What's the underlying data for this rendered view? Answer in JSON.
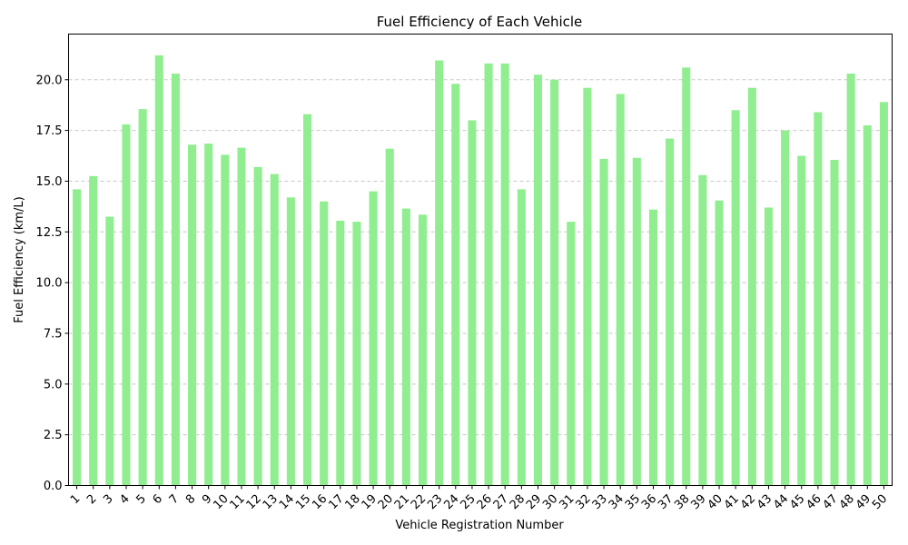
{
  "chart_data": {
    "type": "bar",
    "title": "Fuel Efficiency of Each Vehicle",
    "xlabel": "Vehicle Registration Number",
    "ylabel": "Fuel Efficiency (km/L)",
    "ylim": [
      0,
      22.25
    ],
    "yticks": [
      "0.0",
      "2.5",
      "5.0",
      "7.5",
      "10.0",
      "12.5",
      "15.0",
      "17.5",
      "20.0"
    ],
    "grid": "y-dashed",
    "bar_color": "#90ee90",
    "categories": [
      "1",
      "2",
      "3",
      "4",
      "5",
      "6",
      "7",
      "8",
      "9",
      "10",
      "11",
      "12",
      "13",
      "14",
      "15",
      "16",
      "17",
      "18",
      "19",
      "20",
      "21",
      "22",
      "23",
      "24",
      "25",
      "26",
      "27",
      "28",
      "29",
      "30",
      "31",
      "32",
      "33",
      "34",
      "35",
      "36",
      "37",
      "38",
      "39",
      "40",
      "41",
      "42",
      "43",
      "44",
      "45",
      "46",
      "47",
      "48",
      "49",
      "50"
    ],
    "values": [
      14.6,
      15.25,
      13.25,
      17.8,
      18.55,
      21.2,
      20.3,
      16.8,
      16.85,
      16.3,
      16.65,
      15.7,
      15.35,
      14.2,
      18.3,
      14.0,
      13.05,
      13.0,
      14.5,
      16.6,
      13.65,
      13.35,
      20.95,
      19.8,
      18.0,
      20.8,
      20.8,
      14.6,
      20.25,
      20.0,
      13.0,
      19.6,
      16.1,
      19.3,
      16.15,
      13.6,
      17.1,
      20.6,
      15.3,
      14.05,
      18.5,
      19.6,
      13.7,
      17.5,
      16.25,
      18.4,
      16.05,
      20.3,
      17.75,
      18.9
    ]
  }
}
